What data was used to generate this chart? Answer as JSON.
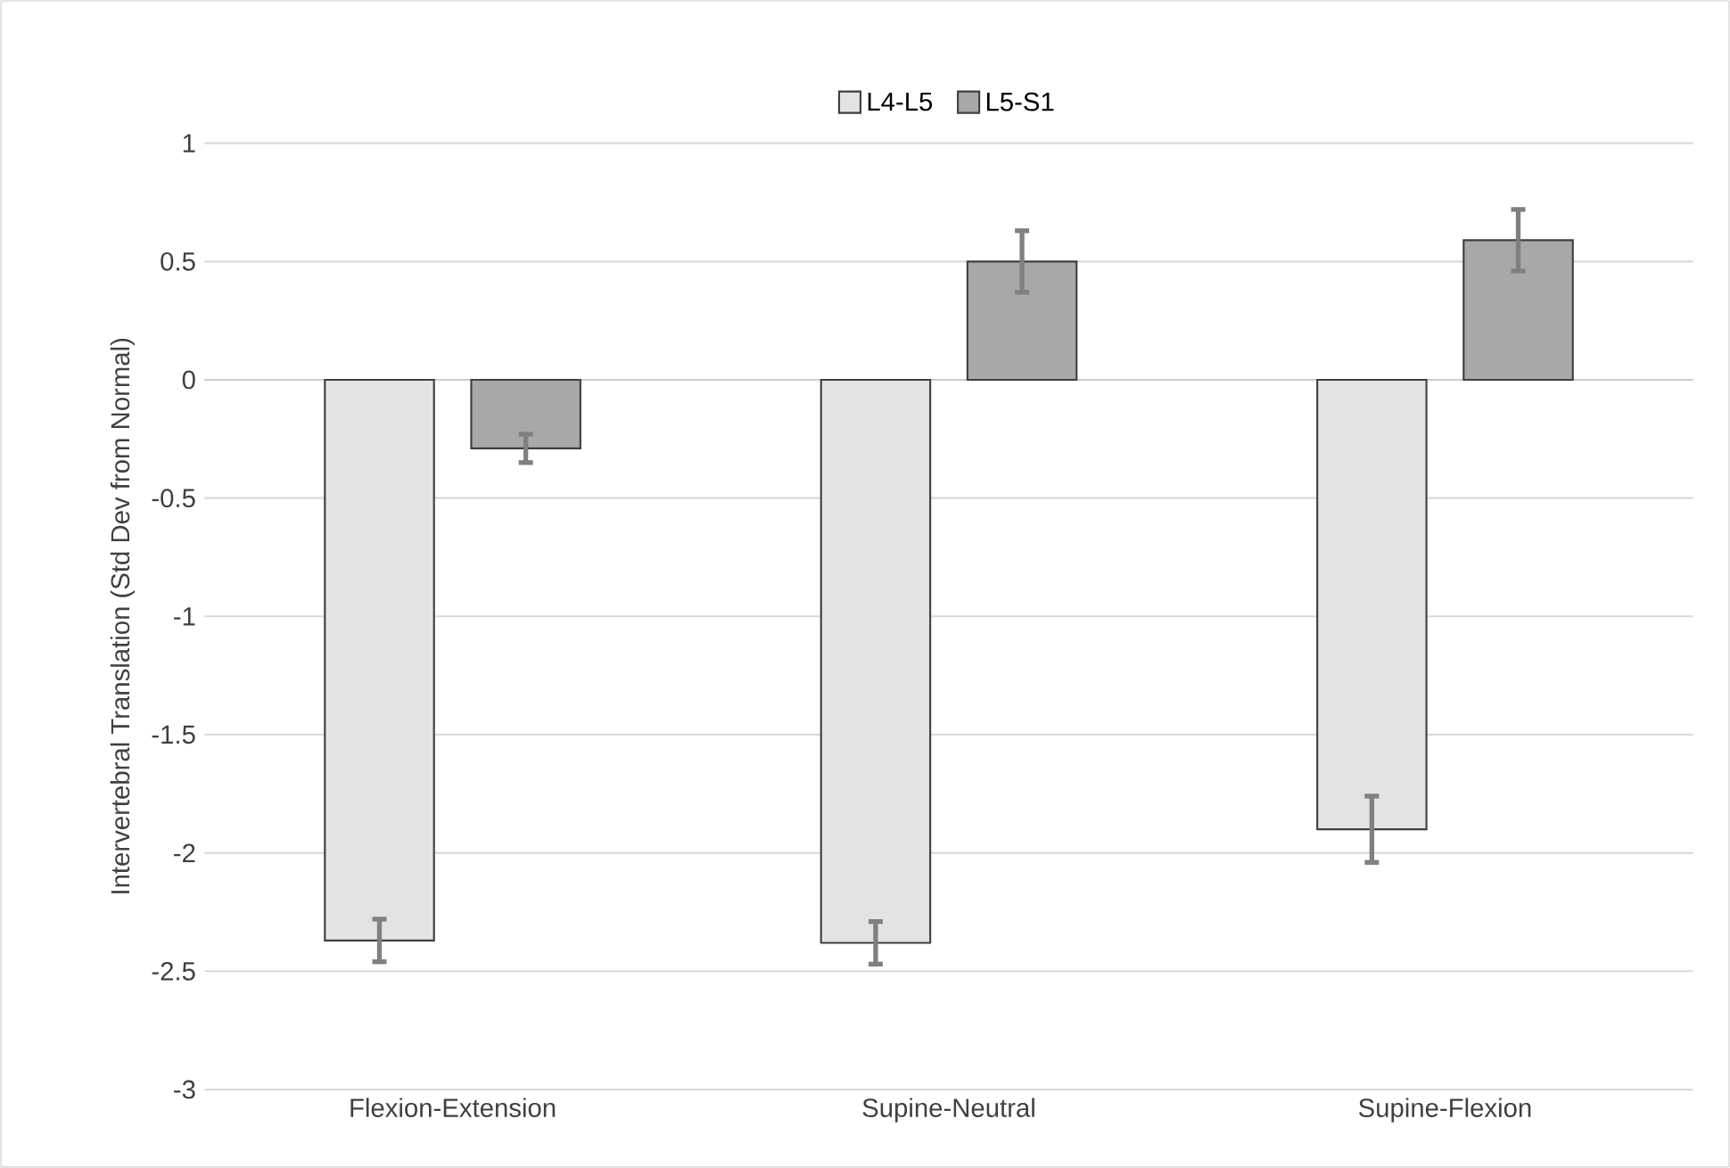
{
  "chart_data": {
    "type": "bar",
    "ylabel": "Intervertebral Translation (Std Dev from Normal)",
    "categories": [
      "Flexion-Extension",
      "Supine-Neutral",
      "Supine-Flexion"
    ],
    "series": [
      {
        "name": "L4-L5",
        "color": "#e3e3e3",
        "values": [
          -2.37,
          -2.38,
          -1.9
        ],
        "errors": [
          0.09,
          0.09,
          0.14
        ]
      },
      {
        "name": "L5-S1",
        "color": "#a8a8a8",
        "values": [
          -0.29,
          0.5,
          0.59
        ],
        "errors": [
          0.06,
          0.13,
          0.13
        ]
      }
    ],
    "ylim": [
      -3,
      1
    ],
    "yticks": [
      -3,
      -2.5,
      -2,
      -1.5,
      -1,
      -0.5,
      0,
      0.5,
      1
    ],
    "grid": "y",
    "legend": "top"
  }
}
